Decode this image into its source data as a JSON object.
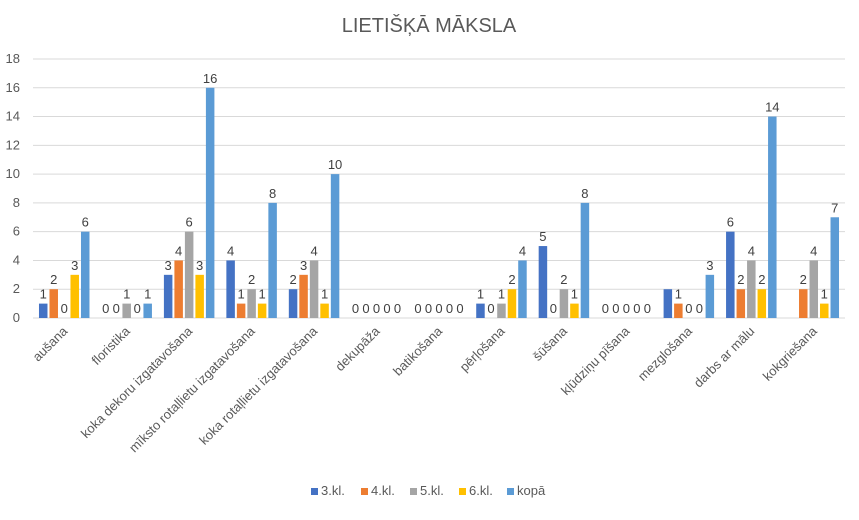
{
  "chart_data": {
    "type": "bar",
    "title": "LIETIŠĶĀ MĀKSLA",
    "categories": [
      "aušana",
      "floristika",
      "koka dekoru izgatavošana",
      "mīksto rotaļlietu izgatavošana",
      "koka rotaļlietu izgatavošana",
      "dekupāža",
      "batikošana",
      "pērļošana",
      "šūšana",
      "kļūdziņu pīšana",
      "mezglošana",
      "darbs ar mālu",
      "kokgriešana"
    ],
    "series": [
      {
        "name": "3.kl.",
        "color": "#4472C4",
        "values": [
          1,
          0,
          3,
          4,
          2,
          0,
          0,
          1,
          5,
          0,
          2,
          6,
          0
        ]
      },
      {
        "name": "4.kl.",
        "color": "#ED7D31",
        "values": [
          2,
          0,
          4,
          1,
          3,
          0,
          0,
          0,
          0,
          0,
          1,
          2,
          2
        ]
      },
      {
        "name": "5.kl.",
        "color": "#A5A5A5",
        "values": [
          0,
          1,
          6,
          2,
          4,
          0,
          0,
          1,
          2,
          0,
          0,
          4,
          4
        ]
      },
      {
        "name": "6.kl.",
        "color": "#FFC000",
        "values": [
          3,
          0,
          3,
          1,
          1,
          0,
          0,
          2,
          1,
          0,
          0,
          2,
          1
        ]
      },
      {
        "name": "kopā",
        "color": "#5B9BD5",
        "values": [
          6,
          1,
          16,
          8,
          10,
          0,
          0,
          4,
          8,
          0,
          3,
          14,
          7
        ]
      }
    ],
    "hide_labels": [
      [
        10,
        0
      ],
      [
        12,
        0
      ]
    ],
    "yticks": [
      "0",
      "2",
      "4",
      "6",
      "8",
      "10",
      "12",
      "14",
      "16",
      "18"
    ],
    "ylim": [
      0,
      18
    ],
    "grid": true,
    "legend_position": "bottom"
  }
}
